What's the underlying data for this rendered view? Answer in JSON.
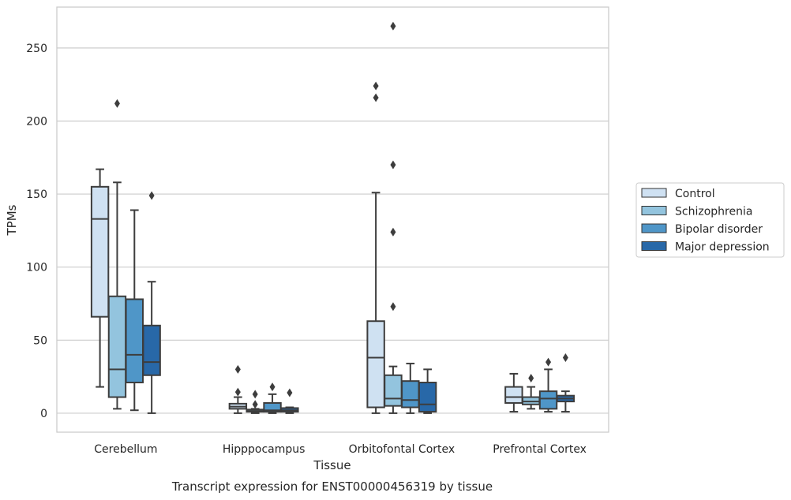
{
  "chart_data": {
    "type": "box",
    "title": "Transcript expression for ENST00000456319 by tissue",
    "xlabel": "Tissue",
    "ylabel": "TPMs",
    "ylim": [
      -13,
      278
    ],
    "yticks": [
      0,
      50,
      100,
      150,
      200,
      250
    ],
    "categories": [
      "Cerebellum",
      "Hipppocampus",
      "Orbitofontal Cortex",
      "Prefrontal Cortex"
    ],
    "grid": true,
    "legend_position": "right",
    "series": [
      {
        "name": "Control",
        "color": "#cfe1f2",
        "boxes": [
          {
            "whislo": 18,
            "q1": 66,
            "med": 133,
            "q3": 155,
            "whishi": 167,
            "fliers": []
          },
          {
            "whislo": 0,
            "q1": 3,
            "med": 4.5,
            "q3": 6.5,
            "whishi": 11,
            "fliers": [
              14.5,
              30
            ]
          },
          {
            "whislo": 0,
            "q1": 4,
            "med": 38,
            "q3": 63,
            "whishi": 151,
            "fliers": [
              216,
              224
            ]
          },
          {
            "whislo": 1,
            "q1": 7,
            "med": 11,
            "q3": 18,
            "whishi": 27,
            "fliers": []
          }
        ]
      },
      {
        "name": "Schizophrenia",
        "color": "#93c4de",
        "boxes": [
          {
            "whislo": 3,
            "q1": 11,
            "med": 30,
            "q3": 80,
            "whishi": 158,
            "fliers": [
              212
            ]
          },
          {
            "whislo": 0,
            "q1": 1,
            "med": 1.5,
            "q3": 2.5,
            "whishi": 3,
            "fliers": [
              6,
              13
            ]
          },
          {
            "whislo": 0,
            "q1": 5,
            "med": 10,
            "q3": 26,
            "whishi": 32,
            "fliers": [
              73,
              124,
              170,
              265
            ]
          },
          {
            "whislo": 3,
            "q1": 6,
            "med": 8,
            "q3": 11,
            "whishi": 18,
            "fliers": [
              24
            ]
          }
        ]
      },
      {
        "name": "Bipolar disorder",
        "color": "#4f96c8",
        "boxes": [
          {
            "whislo": 2,
            "q1": 21,
            "med": 40,
            "q3": 78,
            "whishi": 139,
            "fliers": []
          },
          {
            "whislo": 0,
            "q1": 1,
            "med": 2,
            "q3": 7,
            "whishi": 13,
            "fliers": [
              18
            ]
          },
          {
            "whislo": 0,
            "q1": 4,
            "med": 9,
            "q3": 22,
            "whishi": 34,
            "fliers": []
          },
          {
            "whislo": 1,
            "q1": 3,
            "med": 10,
            "q3": 15,
            "whishi": 30,
            "fliers": [
              35
            ]
          }
        ]
      },
      {
        "name": "Major depression",
        "color": "#2868a8",
        "boxes": [
          {
            "whislo": 0,
            "q1": 26,
            "med": 35,
            "q3": 60,
            "whishi": 90,
            "fliers": [
              149
            ]
          },
          {
            "whislo": 0,
            "q1": 1,
            "med": 2,
            "q3": 3.5,
            "whishi": 4,
            "fliers": [
              14
            ]
          },
          {
            "whislo": 0,
            "q1": 1,
            "med": 6,
            "q3": 21,
            "whishi": 30,
            "fliers": []
          },
          {
            "whislo": 1,
            "q1": 8,
            "med": 10,
            "q3": 12,
            "whishi": 15,
            "fliers": [
              38
            ]
          }
        ]
      }
    ]
  }
}
